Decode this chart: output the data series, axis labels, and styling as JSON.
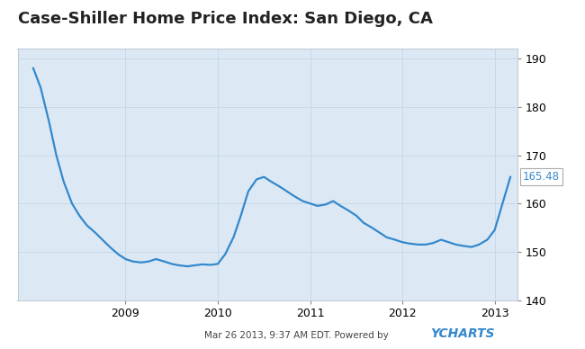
{
  "title": "Case-Shiller Home Price Index: San Diego, CA",
  "title_fontsize": 13,
  "title_fontweight": "bold",
  "bg_color": "#ffffff",
  "plot_bg_color": "#dce9f5",
  "line_color": "#3388cc",
  "line_width": 1.6,
  "ylim": [
    140,
    192
  ],
  "yticks": [
    140,
    150,
    160,
    170,
    180,
    190
  ],
  "xlim_start": 2007.83,
  "xlim_end": 2013.25,
  "xticks": [
    2009,
    2010,
    2011,
    2012,
    2013
  ],
  "xticklabels": [
    "2009",
    "2010",
    "2011",
    "2012",
    "2013"
  ],
  "last_value": 165.48,
  "footer_left": "Mar 26 2013, 9:37 AM EDT. Powered by",
  "footer_right": "YCHARTS",
  "x_data": [
    2008.0,
    2008.08,
    2008.17,
    2008.25,
    2008.33,
    2008.42,
    2008.5,
    2008.58,
    2008.67,
    2008.75,
    2008.83,
    2008.92,
    2009.0,
    2009.08,
    2009.17,
    2009.25,
    2009.33,
    2009.42,
    2009.5,
    2009.58,
    2009.67,
    2009.75,
    2009.83,
    2009.92,
    2010.0,
    2010.08,
    2010.17,
    2010.25,
    2010.33,
    2010.42,
    2010.5,
    2010.58,
    2010.67,
    2010.75,
    2010.83,
    2010.92,
    2011.0,
    2011.08,
    2011.17,
    2011.25,
    2011.33,
    2011.42,
    2011.5,
    2011.58,
    2011.67,
    2011.75,
    2011.83,
    2011.92,
    2012.0,
    2012.08,
    2012.17,
    2012.25,
    2012.33,
    2012.42,
    2012.5,
    2012.58,
    2012.67,
    2012.75,
    2012.83,
    2012.92,
    2013.0,
    2013.17
  ],
  "y_data": [
    188.0,
    184.0,
    177.0,
    170.0,
    164.5,
    160.0,
    157.5,
    155.5,
    154.0,
    152.5,
    151.0,
    149.5,
    148.5,
    148.0,
    147.8,
    148.0,
    148.5,
    148.0,
    147.5,
    147.2,
    147.0,
    147.2,
    147.4,
    147.3,
    147.5,
    149.5,
    153.0,
    157.5,
    162.5,
    165.0,
    165.5,
    164.5,
    163.5,
    162.5,
    161.5,
    160.5,
    160.0,
    159.5,
    159.8,
    160.5,
    159.5,
    158.5,
    157.5,
    156.0,
    155.0,
    154.0,
    153.0,
    152.5,
    152.0,
    151.7,
    151.5,
    151.5,
    151.8,
    152.5,
    152.0,
    151.5,
    151.2,
    151.0,
    151.5,
    152.5,
    154.5,
    165.48
  ]
}
